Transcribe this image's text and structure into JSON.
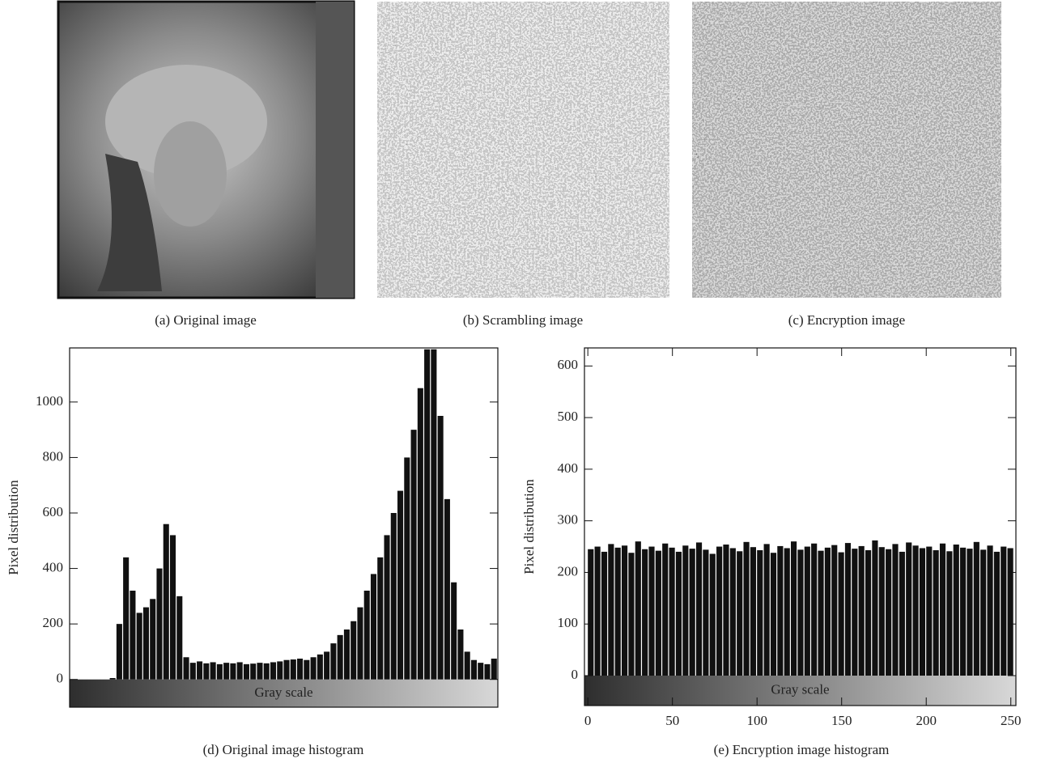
{
  "panels": [
    {
      "caption": "(a)  Original image"
    },
    {
      "caption": "(b)  Scrambling image"
    },
    {
      "caption": "(c)  Encryption image"
    }
  ],
  "chart_data": [
    {
      "type": "histogram",
      "caption": "(d)  Original image histogram",
      "ylabel": "Pixel distribution",
      "scale_label": "Gray scale",
      "bins": [
        0,
        4,
        8,
        12,
        16,
        20,
        24,
        28,
        32,
        36,
        40,
        44,
        48,
        52,
        56,
        60,
        64,
        68,
        72,
        76,
        80,
        84,
        88,
        92,
        96,
        100,
        104,
        108,
        112,
        116,
        120,
        124,
        128,
        132,
        136,
        140,
        144,
        148,
        152,
        156,
        160,
        164,
        168,
        172,
        176,
        180,
        184,
        188,
        192,
        196,
        200,
        204,
        208,
        212,
        216,
        220,
        224,
        228,
        232,
        236,
        240,
        244,
        248,
        252,
        256
      ],
      "values": [
        0,
        0,
        0,
        0,
        0,
        0,
        5,
        200,
        440,
        320,
        240,
        260,
        290,
        400,
        560,
        520,
        300,
        80,
        60,
        65,
        58,
        62,
        55,
        60,
        58,
        62,
        55,
        57,
        60,
        58,
        62,
        65,
        70,
        72,
        75,
        70,
        80,
        90,
        100,
        130,
        160,
        180,
        210,
        260,
        320,
        380,
        440,
        520,
        600,
        680,
        800,
        900,
        1050,
        1190,
        1190,
        950,
        650,
        350,
        180,
        100,
        70,
        60,
        55,
        75
      ],
      "color": "#111111",
      "xlim": [
        0,
        256
      ],
      "ylim": [
        -100,
        1195
      ],
      "yticks": [
        0,
        200,
        400,
        600,
        800,
        1000
      ]
    },
    {
      "type": "histogram",
      "caption": "(e)  Encryption image histogram",
      "ylabel": "Pixel distribution",
      "scale_label": "Gray scale",
      "bins": [
        0,
        4,
        8,
        12,
        16,
        20,
        24,
        28,
        32,
        36,
        40,
        44,
        48,
        52,
        56,
        60,
        64,
        68,
        72,
        76,
        80,
        84,
        88,
        92,
        96,
        100,
        104,
        108,
        112,
        116,
        120,
        124,
        128,
        132,
        136,
        140,
        144,
        148,
        152,
        156,
        160,
        164,
        168,
        172,
        176,
        180,
        184,
        188,
        192,
        196,
        200,
        204,
        208,
        212,
        216,
        220,
        224,
        228,
        232,
        236,
        240,
        244,
        248,
        252
      ],
      "values": [
        245,
        250,
        240,
        255,
        248,
        252,
        238,
        260,
        245,
        250,
        242,
        256,
        248,
        240,
        252,
        246,
        258,
        244,
        236,
        250,
        254,
        247,
        241,
        259,
        249,
        243,
        255,
        238,
        251,
        247,
        260,
        244,
        250,
        256,
        242,
        248,
        253,
        239,
        257,
        246,
        251,
        243,
        262,
        249,
        245,
        255,
        240,
        258,
        252,
        247,
        250,
        243,
        256,
        241,
        254,
        248,
        246,
        259,
        244,
        252,
        240,
        250,
        247
      ],
      "color": "#111111",
      "xlim": [
        -2,
        253
      ],
      "ylim": [
        -58,
        635
      ],
      "yticks": [
        0,
        100,
        200,
        300,
        400,
        500,
        600
      ],
      "xticks": [
        0,
        50,
        100,
        150,
        200,
        250
      ]
    }
  ]
}
